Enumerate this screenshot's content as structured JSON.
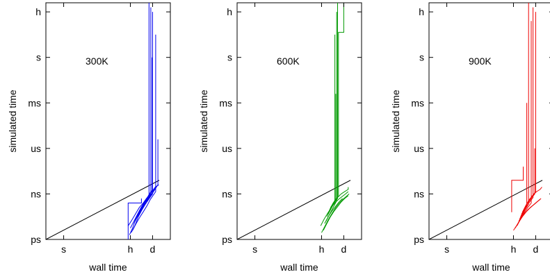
{
  "chart_data": [
    {
      "type": "line",
      "annotation": "300K",
      "color": "#0000ee",
      "xlabel": "wall time",
      "ylabel": "simulated time",
      "xticks": [
        "s",
        "h",
        "d"
      ],
      "yticks": [
        "ps",
        "ns",
        "us",
        "ms",
        "s",
        "h"
      ],
      "reference_line": {
        "x": [
          -0.4,
          2.15
        ],
        "y": [
          0,
          1.3
        ]
      },
      "series": [
        {
          "x": [
            1.48,
            1.55,
            1.62,
            1.7,
            1.78,
            1.86,
            1.93,
            2.0,
            2.05,
            2.1
          ],
          "y": [
            0.1,
            0.25,
            0.45,
            0.6,
            0.72,
            0.85,
            0.95,
            1.02,
            1.1,
            1.17
          ]
        },
        {
          "x": [
            1.52,
            1.6,
            1.68,
            1.76,
            1.84,
            1.9,
            1.97,
            2.03,
            2.08
          ],
          "y": [
            0.15,
            0.3,
            0.5,
            0.65,
            0.78,
            0.88,
            0.98,
            1.06,
            1.14
          ]
        },
        {
          "x": [
            1.45,
            1.53,
            1.61,
            1.7,
            1.79,
            1.86,
            1.95,
            2.01
          ],
          "y": [
            0.3,
            0.42,
            0.55,
            0.7,
            0.8,
            0.9,
            1.0,
            1.08
          ]
        },
        {
          "x": [
            1.55,
            1.63,
            1.72,
            1.8,
            1.88,
            1.95,
            2.02,
            2.07,
            2.07
          ],
          "y": [
            0.2,
            0.35,
            0.5,
            0.62,
            0.75,
            0.88,
            0.98,
            1.05,
            4.5
          ]
        },
        {
          "x": [
            1.58,
            1.66,
            1.74,
            1.82,
            1.89,
            1.96,
            2.0,
            2.0
          ],
          "y": [
            0.35,
            0.5,
            0.62,
            0.75,
            0.85,
            0.95,
            1.0,
            5.0
          ]
        },
        {
          "x": [
            1.6,
            1.68,
            1.76,
            1.83,
            1.9,
            1.97,
            2.04,
            2.12,
            2.12
          ],
          "y": [
            0.4,
            0.55,
            0.68,
            0.8,
            0.9,
            1.02,
            1.1,
            1.2,
            2.2
          ]
        },
        {
          "x": [
            1.62,
            1.7,
            1.78,
            1.86,
            1.92,
            1.92
          ],
          "y": [
            0.45,
            0.6,
            0.75,
            0.88,
            0.98,
            5.2
          ]
        },
        {
          "x": [
            1.5,
            1.58,
            1.66,
            1.74,
            1.82,
            1.9,
            1.96,
            1.96
          ],
          "y": [
            0.25,
            0.4,
            0.55,
            0.7,
            0.82,
            0.93,
            1.0,
            5.1
          ]
        },
        {
          "x": [
            1.64,
            1.72,
            1.8,
            1.88,
            1.94,
            1.99,
            1.99
          ],
          "y": [
            0.5,
            0.65,
            0.8,
            0.92,
            1.02,
            1.08,
            4.0
          ]
        },
        {
          "x": [
            1.68,
            1.76,
            1.84,
            1.92,
            1.98,
            2.06,
            2.14
          ],
          "y": [
            0.55,
            0.68,
            0.82,
            0.95,
            1.05,
            1.15,
            1.2
          ]
        },
        {
          "x": [
            1.45,
            1.45,
            1.75,
            1.75
          ],
          "y": [
            0.0,
            0.8,
            0.8,
            0.9
          ]
        }
      ]
    },
    {
      "type": "line",
      "annotation": "600K",
      "color": "#009900",
      "xlabel": "wall time",
      "ylabel": "simulated time",
      "xticks": [
        "s",
        "h",
        "d"
      ],
      "yticks": [
        "ps",
        "ns",
        "us",
        "ms",
        "s",
        "h"
      ],
      "reference_line": {
        "x": [
          -0.4,
          2.15
        ],
        "y": [
          0,
          1.3
        ]
      },
      "series": [
        {
          "x": [
            1.5,
            1.58,
            1.66,
            1.74,
            1.82,
            1.9,
            1.98,
            2.06,
            2.12
          ],
          "y": [
            0.15,
            0.3,
            0.45,
            0.58,
            0.7,
            0.8,
            0.88,
            0.95,
            1.0
          ]
        },
        {
          "x": [
            1.54,
            1.62,
            1.7,
            1.78,
            1.86,
            1.94,
            2.02,
            2.1
          ],
          "y": [
            0.2,
            0.35,
            0.5,
            0.62,
            0.72,
            0.82,
            0.9,
            0.96
          ]
        },
        {
          "x": [
            1.48,
            1.56,
            1.64,
            1.72,
            1.8,
            1.88,
            1.96,
            2.04,
            2.1
          ],
          "y": [
            0.3,
            0.45,
            0.58,
            0.7,
            0.8,
            0.88,
            0.94,
            1.0,
            1.05
          ]
        },
        {
          "x": [
            1.57,
            1.65,
            1.73,
            1.81,
            1.89,
            1.97
          ],
          "y": [
            0.35,
            0.5,
            0.62,
            0.72,
            0.82,
            0.9
          ]
        },
        {
          "x": [
            1.6,
            1.68,
            1.76,
            1.84,
            1.84
          ],
          "y": [
            0.4,
            0.55,
            0.7,
            0.85,
            5.0
          ]
        },
        {
          "x": [
            1.62,
            1.7,
            1.78,
            1.86,
            1.86
          ],
          "y": [
            0.5,
            0.65,
            0.8,
            0.9,
            5.2
          ]
        },
        {
          "x": [
            1.64,
            1.72,
            1.8,
            1.8
          ],
          "y": [
            0.55,
            0.7,
            0.85,
            4.5
          ]
        },
        {
          "x": [
            1.66,
            1.74,
            1.82,
            1.82
          ],
          "y": [
            0.6,
            0.75,
            0.9,
            3.2
          ]
        },
        {
          "x": [
            1.68,
            1.76,
            1.88,
            1.88,
            2.0,
            2.0
          ],
          "y": [
            0.65,
            0.8,
            0.95,
            4.55,
            4.55,
            5.2
          ]
        },
        {
          "x": [
            1.7,
            1.78,
            1.86,
            1.94,
            2.02,
            2.1,
            2.1
          ],
          "y": [
            0.7,
            0.82,
            0.92,
            1.0,
            1.05,
            1.1,
            1.15
          ]
        }
      ]
    },
    {
      "type": "line",
      "annotation": "900K",
      "color": "#ee0000",
      "xlabel": "wall time",
      "ylabel": "simulated time",
      "xticks": [
        "s",
        "h",
        "d"
      ],
      "yticks": [
        "ps",
        "ns",
        "us",
        "ms",
        "s",
        "h"
      ],
      "reference_line": {
        "x": [
          -0.4,
          2.15
        ],
        "y": [
          0,
          1.3
        ]
      },
      "series": [
        {
          "x": [
            1.5,
            1.58,
            1.66,
            1.74,
            1.82,
            1.9,
            1.98,
            2.06,
            2.12
          ],
          "y": [
            0.2,
            0.32,
            0.45,
            0.56,
            0.65,
            0.72,
            0.78,
            0.85,
            0.9
          ]
        },
        {
          "x": [
            1.54,
            1.62,
            1.7,
            1.78,
            1.86,
            1.94,
            2.02,
            2.1
          ],
          "y": [
            0.25,
            0.38,
            0.5,
            0.6,
            0.68,
            0.75,
            0.82,
            0.88
          ]
        },
        {
          "x": [
            1.46,
            1.46,
            1.72,
            1.72
          ],
          "y": [
            0.6,
            1.3,
            1.3,
            1.6
          ]
        },
        {
          "x": [
            1.58,
            1.66,
            1.74,
            1.82,
            1.9,
            1.9
          ],
          "y": [
            0.3,
            0.45,
            0.58,
            0.7,
            0.8,
            4.8
          ]
        },
        {
          "x": [
            1.6,
            1.68,
            1.76,
            1.84,
            1.84
          ],
          "y": [
            0.35,
            0.5,
            0.65,
            0.78,
            5.2
          ]
        },
        {
          "x": [
            1.62,
            1.7,
            1.78,
            1.86,
            1.94,
            1.94
          ],
          "y": [
            0.4,
            0.55,
            0.7,
            0.82,
            0.92,
            5.1
          ]
        },
        {
          "x": [
            1.64,
            1.72,
            1.8,
            1.8
          ],
          "y": [
            0.45,
            0.6,
            0.75,
            3.0
          ]
        },
        {
          "x": [
            1.66,
            1.74,
            1.82,
            1.9,
            1.98,
            1.98
          ],
          "y": [
            0.5,
            0.65,
            0.8,
            0.9,
            1.0,
            2.0
          ]
        },
        {
          "x": [
            1.68,
            1.76,
            1.84,
            1.92,
            2.0,
            2.0
          ],
          "y": [
            0.55,
            0.7,
            0.85,
            0.95,
            1.05,
            5.0
          ]
        },
        {
          "x": [
            1.7,
            1.78,
            1.86,
            1.94,
            2.02,
            2.1,
            2.14
          ],
          "y": [
            0.6,
            0.75,
            0.88,
            0.98,
            1.05,
            1.1,
            1.15
          ]
        }
      ]
    }
  ]
}
